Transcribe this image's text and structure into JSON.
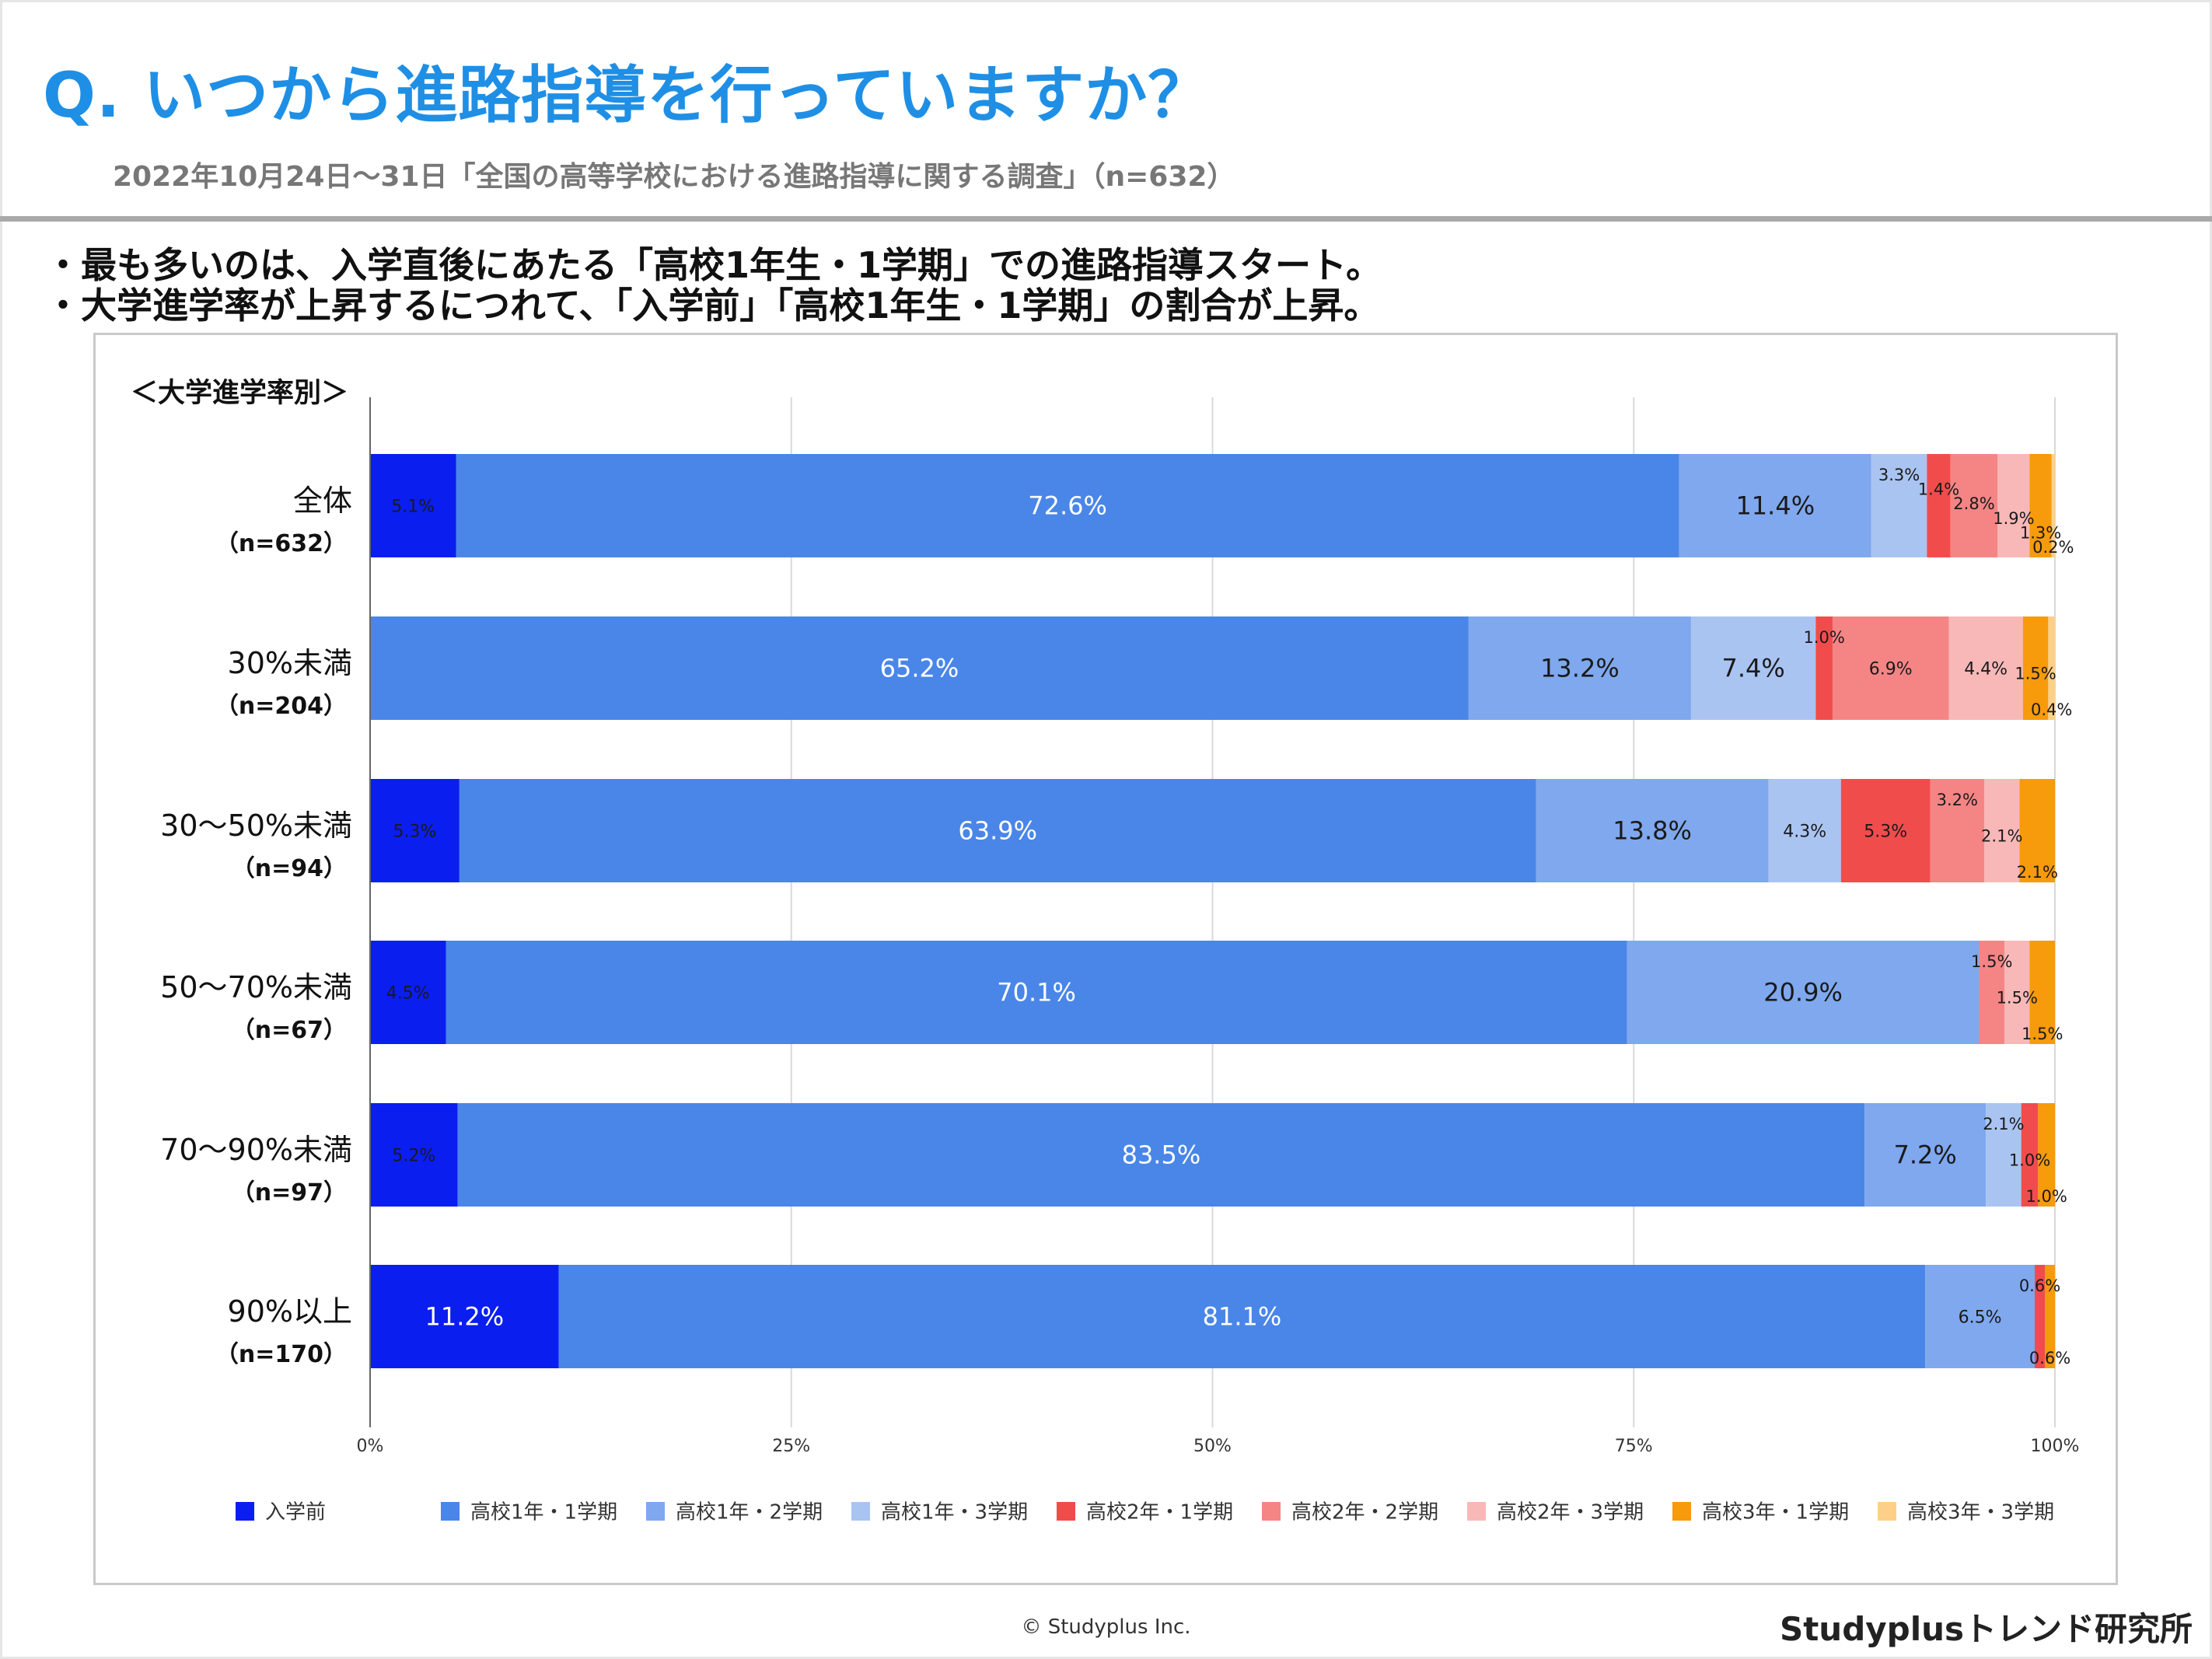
{
  "page": {
    "title": "Q. いつから進路指導を行っていますか？",
    "subtitle": "2022年10月24日〜31日「全国の高等学校における進路指導に関する調査」（n=632）",
    "bullets": [
      "・最も多いのは、入学直後にあたる「高校1年生・1学期」での進路指導スタート。",
      "・大学進学率が上昇するにつれて、「入学前」「高校1年生・1学期」の割合が上昇。"
    ],
    "copyright": "© Studyplus Inc.",
    "brand": "Studyplusトレンド研究所"
  },
  "chart_data": {
    "type": "bar",
    "orientation": "horizontal",
    "stacked": true,
    "group_label": "＜大学進学率別＞",
    "xlim": [
      0,
      100
    ],
    "x_ticks": [
      "0%",
      "25%",
      "50%",
      "75%",
      "100%"
    ],
    "grid": true,
    "legend_position": "bottom",
    "categories": [
      {
        "name": "全体",
        "n": "（n=632）"
      },
      {
        "name": "30%未満",
        "n": "（n=204）"
      },
      {
        "name": "30〜50%未満",
        "n": "（n=94）"
      },
      {
        "name": "50〜70%未満",
        "n": "（n=67）"
      },
      {
        "name": "70〜90%未満",
        "n": "（n=97）"
      },
      {
        "name": "90%以上",
        "n": "（n=170）"
      }
    ],
    "series": [
      {
        "name": "入学前",
        "color": "#0a1ef0",
        "values": [
          5.1,
          0,
          5.3,
          4.5,
          5.2,
          11.2
        ],
        "labels": [
          "5.1%",
          "",
          "5.3%",
          "4.5%",
          "5.2%",
          "11.2%"
        ]
      },
      {
        "name": "高校1年・1学期",
        "color": "#4a86e8",
        "values": [
          72.6,
          65.2,
          63.9,
          70.1,
          83.5,
          81.1
        ],
        "labels": [
          "72.6%",
          "65.2%",
          "63.9%",
          "70.1%",
          "83.5%",
          "81.1%"
        ]
      },
      {
        "name": "高校1年・2学期",
        "color": "#7fa8ee",
        "values": [
          11.4,
          13.2,
          13.8,
          20.9,
          7.2,
          6.5
        ],
        "labels": [
          "11.4%",
          "13.2%",
          "13.8%",
          "20.9%",
          "7.2%",
          "6.5%"
        ]
      },
      {
        "name": "高校1年・3学期",
        "color": "#aac4f2",
        "values": [
          3.3,
          7.4,
          4.3,
          0,
          2.1,
          0
        ],
        "labels": [
          "3.3%",
          "7.4%",
          "4.3%",
          "",
          "2.1%",
          ""
        ]
      },
      {
        "name": "高校2年・1学期",
        "color": "#f14c4c",
        "values": [
          1.4,
          1.0,
          5.3,
          0,
          1.0,
          0.6
        ],
        "labels": [
          "1.4%",
          "1.0%",
          "5.3%",
          "",
          "1.0%",
          "0.6%"
        ]
      },
      {
        "name": "高校2年・2学期",
        "color": "#f58585",
        "values": [
          2.8,
          6.9,
          3.2,
          1.5,
          0,
          0
        ],
        "labels": [
          "2.8%",
          "6.9%",
          "3.2%",
          "1.5%",
          "",
          ""
        ]
      },
      {
        "name": "高校2年・3学期",
        "color": "#f9b8b8",
        "values": [
          1.9,
          4.4,
          2.1,
          1.5,
          0,
          0
        ],
        "labels": [
          "1.9%",
          "4.4%",
          "2.1%",
          "1.5%",
          "",
          ""
        ]
      },
      {
        "name": "高校3年・1学期",
        "color": "#f79a0c",
        "values": [
          1.3,
          1.5,
          2.1,
          1.5,
          1.0,
          0.6
        ],
        "labels": [
          "1.3%",
          "1.5%",
          "2.1%",
          "1.5%",
          "1.0%",
          "0.6%"
        ]
      },
      {
        "name": "高校3年・3学期",
        "color": "#fcd088",
        "values": [
          0.2,
          0.4,
          0,
          0,
          0,
          0
        ],
        "labels": [
          "0.2%",
          "0.4%",
          "",
          "",
          "",
          ""
        ]
      }
    ]
  }
}
